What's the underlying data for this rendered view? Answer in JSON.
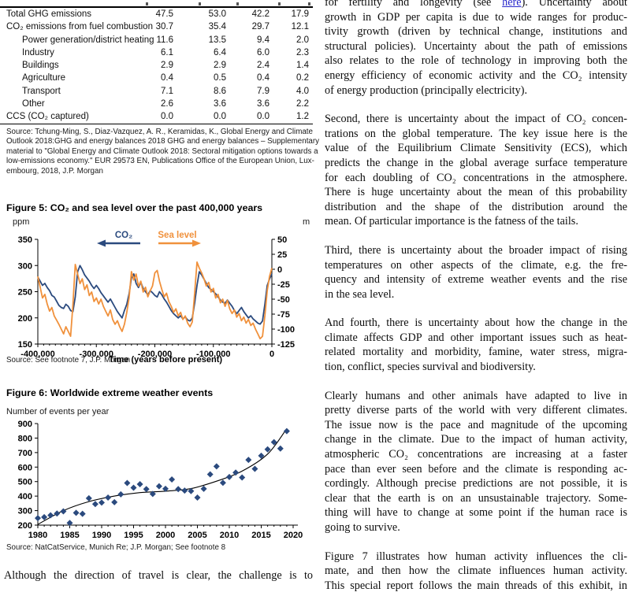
{
  "left": {
    "table": {
      "rows": [
        {
          "label": "Total GHG emissions",
          "indent": 0,
          "values": [
            "47.5",
            "53.0",
            "42.2",
            "17.9"
          ]
        },
        {
          "label": "CO₂ emissions from fuel combustion",
          "indent": 0,
          "values": [
            "30.7",
            "35.4",
            "29.7",
            "12.1"
          ]
        },
        {
          "label": "Power generation/district heating",
          "indent": 1,
          "values": [
            "11.6",
            "13.5",
            "9.4",
            "2.0"
          ]
        },
        {
          "label": "Industry",
          "indent": 1,
          "values": [
            "6.1",
            "6.4",
            "6.0",
            "2.3"
          ]
        },
        {
          "label": "Buildings",
          "indent": 1,
          "values": [
            "2.9",
            "2.9",
            "2.4",
            "1.4"
          ]
        },
        {
          "label": "Agriculture",
          "indent": 1,
          "values": [
            "0.4",
            "0.5",
            "0.4",
            "0.2"
          ]
        },
        {
          "label": "Transport",
          "indent": 1,
          "values": [
            "7.1",
            "8.6",
            "7.9",
            "4.0"
          ]
        },
        {
          "label": "Other",
          "indent": 1,
          "values": [
            "2.6",
            "3.6",
            "3.6",
            "2.2"
          ]
        },
        {
          "label": "CCS (CO₂ captured)",
          "indent": 0,
          "values": [
            "0.0",
            "0.0",
            "0.0",
            "1.2"
          ]
        }
      ],
      "source_lines": [
        "Source: Tchung-Ming, S., Diaz-Vazquez, A. R., Keramidas, K., Global Energy and Climate",
        "Outlook 2018:GHG and energy balances 2018 GHG and energy balances – Supplementary",
        "material to \"Global Energy and Climate Outlook 2018: Sectoral mitigation options towards a",
        "low-emissions economy.\" EUR 29573 EN, Publications Office of the European Union, Lux-",
        "embourg, 2018,  J.P. Morgan"
      ]
    },
    "bottom_text_line": "Although the direction of travel is clear, the challenge is to"
  },
  "right": {
    "p1_line1": {
      "pre": "for fertility and longevity (see ",
      "link": "here",
      "post": "). Uncertainty about"
    },
    "p1_rest": [
      "growth in GDP per capita is due to wide ranges for produc-",
      "tivity growth (driven by technical change, institutions and",
      "structural policies). Uncertainty about the path of emissions",
      "also relates to the role of technology in improving both the",
      "energy efficiency of economic activity and the CO₂ intensity",
      "of energy production (principally electricity)."
    ],
    "paragraphs": [
      {
        "lines": [
          "Second, there is uncertainty about the impact of CO₂ concen-",
          "trations on the global temperature. The key issue here is the",
          "value of the Equilibrium Climate Sensitivity (ECS), which",
          "predicts the change in the global average surface temperature",
          "for each doubling of CO₂ concentrations in the atmosphere.",
          "There is huge uncertainty about the mean of this probability",
          "distribution and the shape of the distribution around the",
          "mean. Of particular importance is the fatness of the tails."
        ]
      },
      {
        "lines": [
          "Third, there is uncertainty about the broader impact of rising",
          "temperatures on other aspects of the climate, e.g. the fre-",
          "quency and intensity of extreme weather events and the rise",
          "in the sea level."
        ]
      },
      {
        "lines": [
          "And fourth, there is uncertainty about how the change in the",
          "climate affects GDP and other important issues such as heat-",
          "related mortality and morbidity, famine, water stress, migra-",
          "tion, conflict, species survival and biodiversity."
        ]
      },
      {
        "lines": [
          "Clearly humans and other animals have adapted to live in",
          "pretty diverse parts of the world with very different climates.",
          "The issue now is the pace and magnitude of the upcoming",
          "change in the climate. Due to the impact of human activity,",
          "atmospheric CO₂ concentrations are increasing at a faster",
          "pace than ever seen before and the climate is responding ac-",
          "cordingly. Although precise predictions are not possible, it is",
          "clear that the earth is on an unsustainable trajectory. Some-",
          "thing will have to change at some point if the human race is",
          "going to survive."
        ]
      },
      {
        "lines": [
          "Figure 7 illustrates how human activity influences the cli-",
          "mate, and then how the climate influences human activity.",
          "This special report follows the main threads of this exhibit, in"
        ],
        "continues": true
      }
    ]
  },
  "chart_data": [
    {
      "id": "figure5",
      "type": "line",
      "title": "Figure 5: CO₂ and sea level over the past 400,000 years",
      "left_axis": {
        "unit": "ppm",
        "ticks": [
          350,
          300,
          250,
          200,
          150
        ],
        "range": [
          150,
          350
        ]
      },
      "right_axis": {
        "unit": "m",
        "ticks": [
          50,
          25,
          0,
          -25,
          -50,
          -75,
          -100,
          -125
        ],
        "range": [
          -125,
          50
        ]
      },
      "x_axis": {
        "label": "Time (years before present)",
        "tick_labels": [
          "-400,000",
          "-300,000",
          "-200,000",
          "-100,000",
          "0"
        ],
        "tick_values_kyr": [
          -400,
          -300,
          -200,
          -100,
          0
        ],
        "range_kyr": [
          -400,
          0
        ]
      },
      "source": "Source: See footnote 7, J.P. Morgan",
      "legend": [
        {
          "label": "CO₂",
          "color": "#2B4A7E",
          "arrow": "left"
        },
        {
          "label": "Sea level",
          "color": "#F0913C",
          "arrow": "right"
        }
      ],
      "series": [
        {
          "name": "CO₂",
          "axis": "left",
          "color": "#2B4A7E",
          "unit": "ppm",
          "x_kyr": [
            -400,
            -396,
            -392,
            -388,
            -384,
            -380,
            -376,
            -372,
            -368,
            -364,
            -360,
            -356,
            -352,
            -348,
            -344,
            -340,
            -336,
            -332,
            -328,
            -324,
            -320,
            -316,
            -312,
            -308,
            -304,
            -300,
            -296,
            -292,
            -288,
            -284,
            -280,
            -276,
            -272,
            -268,
            -264,
            -260,
            -256,
            -252,
            -248,
            -244,
            -240,
            -236,
            -232,
            -228,
            -224,
            -220,
            -216,
            -212,
            -208,
            -204,
            -200,
            -196,
            -192,
            -188,
            -184,
            -180,
            -176,
            -172,
            -168,
            -164,
            -160,
            -156,
            -152,
            -148,
            -144,
            -140,
            -136,
            -132,
            -128,
            -124,
            -120,
            -116,
            -112,
            -108,
            -104,
            -100,
            -96,
            -92,
            -88,
            -84,
            -80,
            -76,
            -72,
            -68,
            -64,
            -60,
            -56,
            -52,
            -48,
            -44,
            -40,
            -36,
            -32,
            -28,
            -24,
            -20,
            -16,
            -12,
            -8,
            -4,
            0
          ],
          "values": [
            278,
            270,
            262,
            266,
            258,
            252,
            243,
            240,
            232,
            224,
            220,
            218,
            226,
            222,
            214,
            212,
            240,
            288,
            300,
            292,
            282,
            276,
            270,
            262,
            256,
            262,
            256,
            248,
            242,
            236,
            230,
            236,
            228,
            220,
            212,
            206,
            200,
            214,
            226,
            246,
            276,
            284,
            266,
            258,
            268,
            256,
            250,
            244,
            252,
            248,
            243,
            240,
            250,
            244,
            236,
            230,
            222,
            214,
            208,
            204,
            200,
            204,
            198,
            202,
            196,
            194,
            200,
            228,
            262,
            288,
            282,
            274,
            266,
            258,
            254,
            250,
            246,
            240,
            234,
            230,
            228,
            234,
            228,
            222,
            214,
            208,
            214,
            220,
            212,
            206,
            200,
            204,
            198,
            194,
            190,
            188,
            194,
            226,
            262,
            274,
            284
          ]
        },
        {
          "name": "Sea level",
          "axis": "right",
          "color": "#F0913C",
          "unit": "m",
          "x_kyr": [
            -400,
            -396,
            -392,
            -388,
            -384,
            -380,
            -376,
            -372,
            -368,
            -364,
            -360,
            -356,
            -352,
            -348,
            -344,
            -340,
            -336,
            -332,
            -328,
            -324,
            -320,
            -316,
            -312,
            -308,
            -304,
            -300,
            -296,
            -292,
            -288,
            -284,
            -280,
            -276,
            -272,
            -268,
            -264,
            -260,
            -256,
            -252,
            -248,
            -244,
            -240,
            -236,
            -232,
            -228,
            -224,
            -220,
            -216,
            -212,
            -208,
            -204,
            -200,
            -196,
            -192,
            -188,
            -184,
            -180,
            -176,
            -172,
            -168,
            -164,
            -160,
            -156,
            -152,
            -148,
            -144,
            -140,
            -136,
            -132,
            -128,
            -124,
            -120,
            -116,
            -112,
            -108,
            -104,
            -100,
            -96,
            -92,
            -88,
            -84,
            -80,
            -76,
            -72,
            -68,
            -64,
            -60,
            -56,
            -52,
            -48,
            -44,
            -40,
            -36,
            -32,
            -28,
            -24,
            -20,
            -16,
            -12,
            -8,
            -4,
            0
          ],
          "values": [
            -12,
            -30,
            -48,
            -42,
            -58,
            -70,
            -64,
            -78,
            -85,
            -92,
            -100,
            -108,
            -96,
            -104,
            -112,
            -60,
            8,
            -8,
            -24,
            -16,
            -34,
            -26,
            -44,
            -38,
            -54,
            -48,
            -58,
            -50,
            -62,
            -70,
            -78,
            -68,
            -84,
            -92,
            -86,
            -96,
            -104,
            -92,
            -72,
            -48,
            -4,
            -18,
            -8,
            -28,
            -20,
            -38,
            -30,
            -46,
            -36,
            -28,
            -6,
            -2,
            -20,
            -34,
            -46,
            -40,
            -54,
            -62,
            -72,
            -66,
            -78,
            -72,
            -84,
            -78,
            -90,
            -96,
            -88,
            -40,
            12,
            2,
            -6,
            -16,
            -28,
            -22,
            -38,
            -32,
            -48,
            -42,
            -56,
            -50,
            -62,
            -52,
            -66,
            -74,
            -68,
            -80,
            -74,
            -86,
            -80,
            -90,
            -84,
            -94,
            -90,
            -100,
            -108,
            -116,
            -112,
            -78,
            -36,
            -12,
            2
          ]
        }
      ]
    },
    {
      "id": "figure6",
      "type": "scatter",
      "title": "Figure 6: Worldwide extreme weather events",
      "ylabel": "Number of events per year",
      "source": "Source: NatCatService, Munich Re; J.P. Morgan; See footnote 8",
      "y_axis": {
        "ticks": [
          900,
          800,
          700,
          600,
          500,
          400,
          300,
          200
        ],
        "range": [
          200,
          900
        ]
      },
      "x_axis": {
        "tick_values": [
          1980,
          1985,
          1990,
          1995,
          2000,
          2005,
          2010,
          2015,
          2020
        ],
        "range": [
          1980,
          2020
        ]
      },
      "marker_color": "#2B4A7E",
      "years": [
        1980,
        1981,
        1982,
        1983,
        1984,
        1985,
        1986,
        1987,
        1988,
        1989,
        1990,
        1991,
        1992,
        1993,
        1994,
        1995,
        1996,
        1997,
        1998,
        1999,
        2000,
        2001,
        2002,
        2003,
        2004,
        2005,
        2006,
        2007,
        2008,
        2009,
        2010,
        2011,
        2012,
        2013,
        2014,
        2015,
        2016,
        2017,
        2018,
        2019
      ],
      "values": [
        248,
        255,
        268,
        280,
        295,
        215,
        285,
        278,
        385,
        345,
        355,
        390,
        358,
        412,
        490,
        458,
        482,
        448,
        415,
        468,
        450,
        515,
        448,
        438,
        435,
        390,
        450,
        550,
        605,
        492,
        532,
        562,
        528,
        650,
        588,
        678,
        722,
        772,
        728,
        848
      ],
      "trend_line": {
        "color": "#000000",
        "points": [
          [
            1980,
            205
          ],
          [
            1984,
            300
          ],
          [
            1988,
            362
          ],
          [
            1992,
            400
          ],
          [
            1996,
            424
          ],
          [
            2000,
            434
          ],
          [
            2004,
            452
          ],
          [
            2008,
            503
          ],
          [
            2012,
            572
          ],
          [
            2016,
            690
          ],
          [
            2019,
            865
          ]
        ]
      }
    }
  ]
}
